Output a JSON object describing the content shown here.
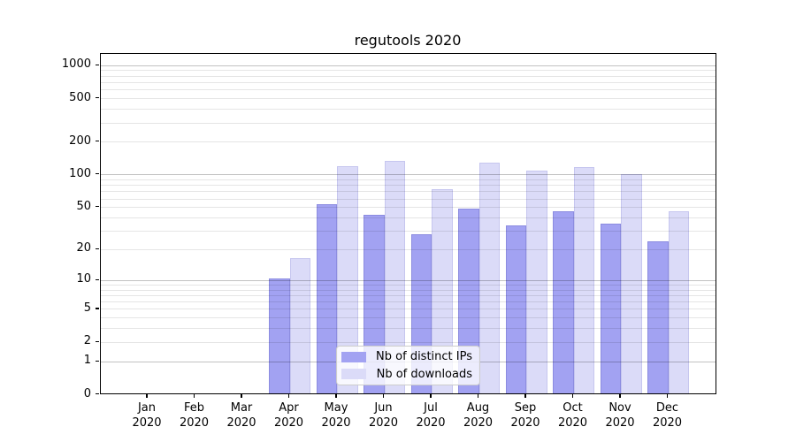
{
  "chart": {
    "title": "regutools 2020",
    "colors": {
      "ips_fill": "#a2a2f2",
      "ips_edge": "#8c8ce0",
      "downloads_fill": "#dbdbf8",
      "downloads_edge": "#c6c6ef",
      "grid_major": "rgba(0,0,0,0.24)",
      "grid_minor": "rgba(0,0,0,0.10)",
      "axis": "#000000",
      "legend_border": "#cccccc"
    }
  },
  "chart_data": {
    "type": "bar",
    "title": "regutools 2020",
    "categories": [
      "Jan 2020",
      "Feb 2020",
      "Mar 2020",
      "Apr 2020",
      "May 2020",
      "Jun 2020",
      "Jul 2020",
      "Aug 2020",
      "Sep 2020",
      "Oct 2020",
      "Nov 2020",
      "Dec 2020"
    ],
    "series": [
      {
        "name": "Nb of distinct IPs",
        "color": "#a2a2f2",
        "values": [
          0,
          0,
          0,
          10,
          52,
          41,
          27,
          47,
          33,
          44,
          34,
          23
        ]
      },
      {
        "name": "Nb of downloads",
        "color": "#dbdbf8",
        "values": [
          0,
          0,
          0,
          16,
          115,
          130,
          71,
          125,
          106,
          114,
          98,
          44
        ]
      }
    ],
    "xlabel": "",
    "ylabel": "",
    "yscale": "log1p",
    "yticks": [
      0,
      1,
      2,
      5,
      10,
      20,
      50,
      100,
      200,
      500,
      1000
    ],
    "major_grid_values": [
      1,
      10,
      100,
      1000
    ],
    "ylim": [
      0,
      1260
    ],
    "grid": true,
    "grid_above_bars": true,
    "legend_position": "lower center"
  }
}
